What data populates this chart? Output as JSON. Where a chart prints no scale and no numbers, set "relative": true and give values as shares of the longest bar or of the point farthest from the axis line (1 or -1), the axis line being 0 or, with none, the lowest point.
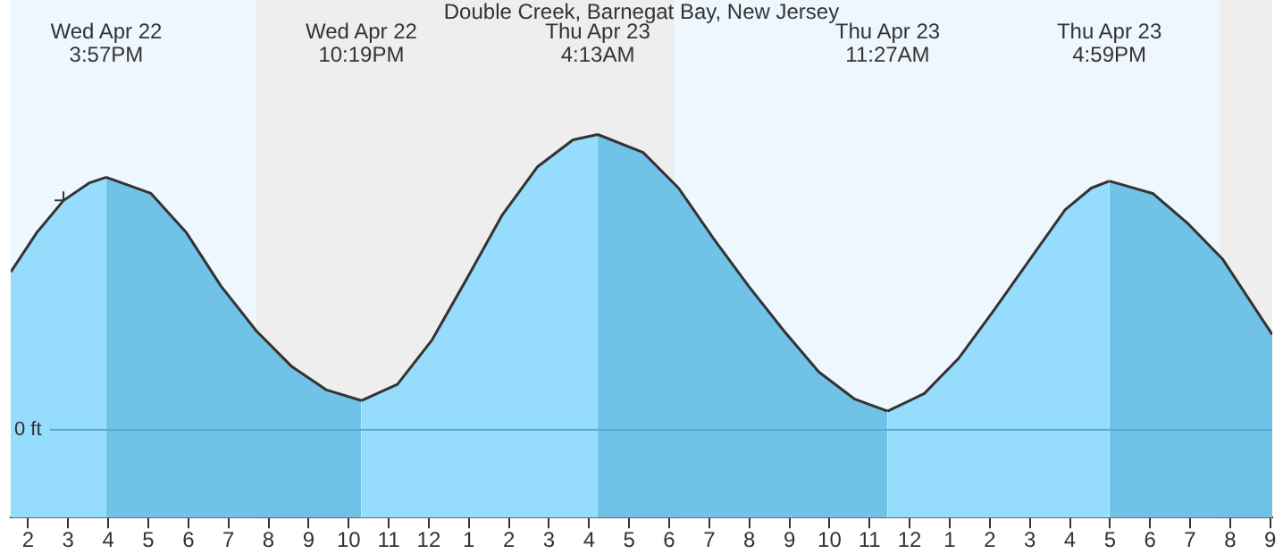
{
  "chart_data": {
    "type": "area",
    "title": "Double Creek, Barnegat Bay, New Jersey",
    "relative": true,
    "xlim": [
      "--04-22T13:34",
      "--04-23T21:03"
    ],
    "xticks": [
      {
        "value": "--04-22T14:00",
        "label": "2"
      },
      {
        "value": "--04-22T15:00",
        "label": "3"
      },
      {
        "value": "--04-22T16:00",
        "label": "4"
      },
      {
        "value": "--04-22T17:00",
        "label": "5"
      },
      {
        "value": "--04-22T18:00",
        "label": "6"
      },
      {
        "value": "--04-22T19:00",
        "label": "7"
      },
      {
        "value": "--04-22T20:00",
        "label": "8"
      },
      {
        "value": "--04-22T21:00",
        "label": "9"
      },
      {
        "value": "--04-22T22:00",
        "label": "10"
      },
      {
        "value": "--04-22T23:00",
        "label": "11"
      },
      {
        "value": "--04-23T00:00",
        "label": "12"
      },
      {
        "value": "--04-23T01:00",
        "label": "1"
      },
      {
        "value": "--04-23T02:00",
        "label": "2"
      },
      {
        "value": "--04-23T03:00",
        "label": "3"
      },
      {
        "value": "--04-23T04:00",
        "label": "4"
      },
      {
        "value": "--04-23T05:00",
        "label": "5"
      },
      {
        "value": "--04-23T06:00",
        "label": "6"
      },
      {
        "value": "--04-23T07:00",
        "label": "7"
      },
      {
        "value": "--04-23T08:00",
        "label": "8"
      },
      {
        "value": "--04-23T09:00",
        "label": "9"
      },
      {
        "value": "--04-23T10:00",
        "label": "10"
      },
      {
        "value": "--04-23T11:00",
        "label": "11"
      },
      {
        "value": "--04-23T12:00",
        "label": "12"
      },
      {
        "value": "--04-23T13:00",
        "label": "1"
      },
      {
        "value": "--04-23T14:00",
        "label": "2"
      },
      {
        "value": "--04-23T15:00",
        "label": "3"
      },
      {
        "value": "--04-23T16:00",
        "label": "4"
      },
      {
        "value": "--04-23T17:00",
        "label": "5"
      },
      {
        "value": "--04-23T18:00",
        "label": "6"
      },
      {
        "value": "--04-23T19:00",
        "label": "7"
      },
      {
        "value": "--04-23T20:00",
        "label": "8"
      },
      {
        "value": "--04-23T21:00",
        "label": "9"
      }
    ],
    "series": [
      {
        "color": "#96dcfc",
        "x": [
          "--04-22T13:34",
          "--04-22T14:13",
          "--04-22T14:53",
          "--04-22T15:32",
          "--04-22T15:57",
          "--04-22T19:00",
          "--04-22T22:19",
          "--04-22T23:13",
          "--04-23T00:05",
          "--04-23T00:58",
          "--04-23T01:50",
          "--04-23T02:43",
          "--04-23T03:36",
          "--04-23T04:13",
          "--04-23T08:00",
          "--04-23T11:27",
          "--04-23T12:22",
          "--04-23T13:14",
          "--04-23T14:07",
          "--04-23T15:00",
          "--04-23T15:53",
          "--04-23T16:32",
          "--04-23T16:59"
        ],
        "values": [
          0.533,
          0.667,
          0.776,
          0.836,
          0.855,
          null,
          0.097,
          0.152,
          0.303,
          0.515,
          0.727,
          0.891,
          0.982,
          1,
          null,
          0.061,
          0.121,
          0.242,
          0.406,
          0.576,
          0.745,
          0.818,
          0.842
        ]
      },
      {
        "color": "#70c2e6",
        "x": [
          "--04-22T15:57",
          "--04-22T17:04",
          "--04-22T17:57",
          "--04-22T18:49",
          "--04-22T19:42",
          "--04-22T20:35",
          "--04-22T21:27",
          "--04-22T22:19",
          "--04-23T01:00",
          "--04-23T04:13",
          "--04-23T05:21",
          "--04-23T06:14",
          "--04-23T07:06",
          "--04-23T07:59",
          "--04-23T08:52",
          "--04-23T09:44",
          "--04-23T10:37",
          "--04-23T11:27",
          "--04-23T14:00",
          "--04-23T16:59",
          "--04-23T18:04",
          "--04-23T18:57",
          "--04-23T19:49",
          "--04-23T21:03"
        ],
        "values": [
          0.855,
          0.8,
          0.667,
          0.485,
          0.333,
          0.212,
          0.133,
          0.097,
          null,
          1,
          0.939,
          0.818,
          0.648,
          0.485,
          0.333,
          0.194,
          0.103,
          0.061,
          null,
          0.842,
          0.8,
          0.697,
          0.576,
          0.321
        ]
      },
      {
        "type": "scatter",
        "marker": "cross",
        "color": "#333333",
        "x": [
          "--04-22T14:53"
        ],
        "values": [
          0.776
        ]
      }
    ],
    "ref_lines": [
      {
        "axis": "y",
        "value": 0,
        "label": "0 ft",
        "color": "#5aa8d0"
      }
    ],
    "bands": [
      {
        "axis": "x",
        "from": "--04-22T13:34",
        "to": "--04-22T19:42",
        "color": "#eef7fe"
      },
      {
        "axis": "x",
        "from": "--04-22T19:42",
        "to": "--04-23T06:08",
        "color": "#eeeeee"
      },
      {
        "axis": "x",
        "from": "--04-23T06:08",
        "to": "--04-23T19:44",
        "color": "#eef7fe"
      },
      {
        "axis": "x",
        "from": "--04-23T19:44",
        "to": "--04-23T21:03",
        "color": "#eeeeee"
      }
    ],
    "annotations": [
      "Wed Apr 22\n3:57PM",
      "Wed Apr 22\n10:19PM",
      "Thu Apr 23\n4:13AM",
      "Thu Apr 23\n11:27AM",
      "Thu Apr 23\n4:59PM"
    ],
    "legend": false
  }
}
